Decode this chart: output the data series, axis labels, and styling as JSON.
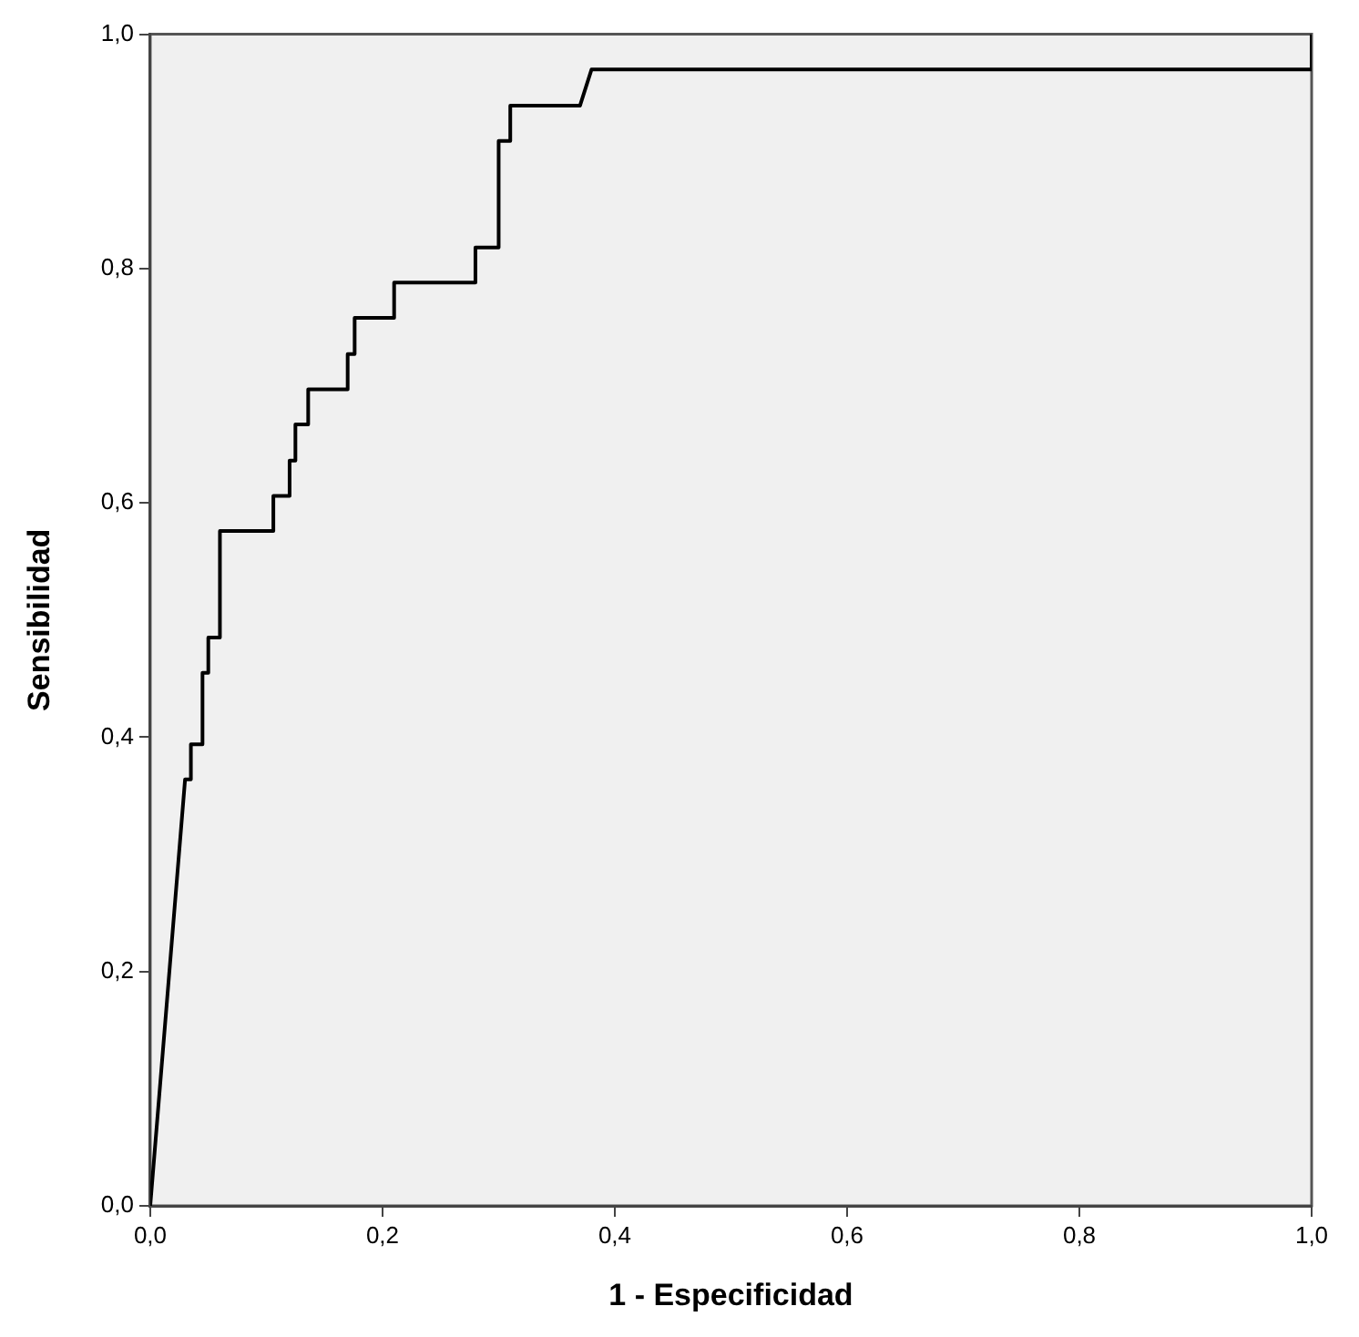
{
  "chart_data": {
    "type": "line",
    "xlabel": "1 - Especificidad",
    "ylabel": "Sensibilidad",
    "xlim": [
      0,
      1
    ],
    "ylim": [
      0,
      1
    ],
    "xticks": [
      {
        "value": 0,
        "label": "0,0"
      },
      {
        "value": 0.2,
        "label": "0,2"
      },
      {
        "value": 0.4,
        "label": "0,4"
      },
      {
        "value": 0.6,
        "label": "0,6"
      },
      {
        "value": 0.8,
        "label": "0,8"
      },
      {
        "value": 1,
        "label": "1,0"
      }
    ],
    "yticks": [
      {
        "value": 0,
        "label": "0,0"
      },
      {
        "value": 0.2,
        "label": "0,2"
      },
      {
        "value": 0.4,
        "label": "0,4"
      },
      {
        "value": 0.6,
        "label": "0,6"
      },
      {
        "value": 0.8,
        "label": "0,8"
      },
      {
        "value": 1,
        "label": "1,0"
      }
    ],
    "grid": false,
    "legend": false,
    "marker": "none",
    "line_style": "solid",
    "series": [
      {
        "color": "#000000",
        "x": [
          0,
          0.03,
          0.035,
          0.035,
          0.045,
          0.045,
          0.05,
          0.05,
          0.06,
          0.06,
          0.106,
          0.106,
          0.12,
          0.12,
          0.125,
          0.125,
          0.136,
          0.136,
          0.17,
          0.17,
          0.176,
          0.176,
          0.21,
          0.21,
          0.28,
          0.28,
          0.3,
          0.3,
          0.31,
          0.31,
          0.37,
          0.38,
          1,
          1
        ],
        "values": [
          0,
          0.364,
          0.364,
          0.394,
          0.394,
          0.455,
          0.455,
          0.485,
          0.485,
          0.576,
          0.576,
          0.606,
          0.606,
          0.636,
          0.636,
          0.667,
          0.667,
          0.697,
          0.697,
          0.727,
          0.727,
          0.758,
          0.758,
          0.788,
          0.788,
          0.818,
          0.818,
          0.909,
          0.909,
          0.939,
          0.939,
          0.97,
          0.97,
          1
        ]
      }
    ]
  }
}
